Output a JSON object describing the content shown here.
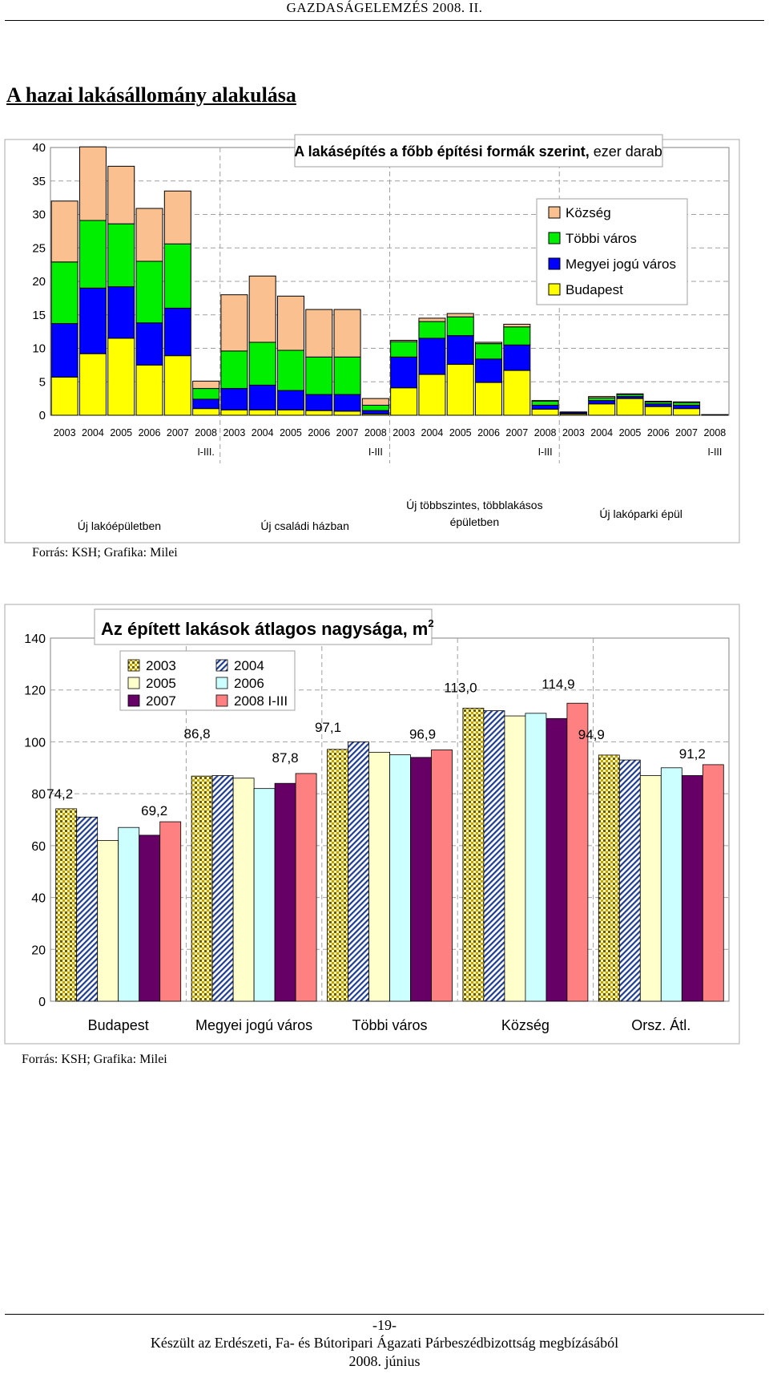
{
  "header": {
    "text": "GAZDASÁGELEMZÉS 2008. II."
  },
  "section_title": "A hazai lakásállomány alakulása",
  "chart1_source": "Forrás: KSH; Grafika: Milei",
  "chart2_source": "Forrás: KSH; Grafika: Milei",
  "footer": {
    "page": "-19-",
    "line1": "Készült az Erdészeti, Fa- és Bútoripari Ágazati Párbeszédbizottság megbízásából",
    "line2": "2008. június"
  },
  "colors": {
    "budapest": "#ffff00",
    "megyei": "#0000ff",
    "tobbi": "#00ee00",
    "kozseg": "#fac090",
    "bar2003_dots": "#c7a300",
    "bar2004_hatch": "#1f3c93",
    "bar2005": "#ffffcc",
    "bar2006": "#ccffff",
    "bar2007": "#660066",
    "bar2008": "#ff8080"
  },
  "chart_data": [
    {
      "type": "bar",
      "stacked": true,
      "title_bold": "A lakásépítés a főbb építési formák szerint,",
      "title_normal": "ezer darab",
      "ylim": [
        0,
        40
      ],
      "yticks": [
        0,
        5,
        10,
        15,
        20,
        25,
        30,
        35,
        40
      ],
      "legend": [
        "Község",
        "Többi város",
        "Megyei jogú város",
        "Budapest"
      ],
      "legend_position": "top-right",
      "groups": [
        {
          "name": "Új lakóépületben",
          "categories": [
            "2003",
            "2004",
            "2005",
            "2006",
            "2007",
            "2008"
          ],
          "period_label": "I-III.",
          "series": [
            {
              "name": "Budapest",
              "values": [
                5.7,
                9.2,
                11.5,
                7.5,
                8.9,
                1.0
              ]
            },
            {
              "name": "Megyei jogú város",
              "values": [
                8.0,
                9.8,
                7.7,
                6.3,
                7.1,
                1.4
              ]
            },
            {
              "name": "Többi város",
              "values": [
                9.2,
                10.1,
                9.4,
                9.2,
                9.6,
                1.6
              ]
            },
            {
              "name": "Község",
              "values": [
                9.1,
                11.0,
                8.6,
                7.9,
                7.9,
                1.1
              ]
            }
          ]
        },
        {
          "name": "Új családi házban",
          "categories": [
            "2003",
            "2004",
            "2005",
            "2006",
            "2007",
            "2008"
          ],
          "period_label": "I-III",
          "series": [
            {
              "name": "Budapest",
              "values": [
                0.8,
                0.8,
                0.8,
                0.7,
                0.6,
                0.2
              ]
            },
            {
              "name": "Megyei jogú város",
              "values": [
                3.2,
                3.7,
                2.9,
                2.4,
                2.5,
                0.5
              ]
            },
            {
              "name": "Többi város",
              "values": [
                5.6,
                6.4,
                6.0,
                5.6,
                5.6,
                0.8
              ]
            },
            {
              "name": "Község",
              "values": [
                8.4,
                9.9,
                8.1,
                7.1,
                7.1,
                1.0
              ]
            }
          ]
        },
        {
          "name": "Új többszintes, többlakásos épületben",
          "categories": [
            "2003",
            "2004",
            "2005",
            "2006",
            "2007",
            "2008"
          ],
          "period_label": "I-III",
          "series": [
            {
              "name": "Budapest",
              "values": [
                4.1,
                6.1,
                7.6,
                4.9,
                6.7,
                0.9
              ]
            },
            {
              "name": "Megyei jogú város",
              "values": [
                4.6,
                5.4,
                4.3,
                3.5,
                3.8,
                0.6
              ]
            },
            {
              "name": "Többi város",
              "values": [
                2.3,
                2.5,
                2.8,
                2.3,
                2.7,
                0.6
              ]
            },
            {
              "name": "Község",
              "values": [
                0.2,
                0.5,
                0.5,
                0.2,
                0.4,
                0.1
              ]
            }
          ]
        },
        {
          "name": "Új lakóparki épül",
          "categories": [
            "2003",
            "2004",
            "2005",
            "2006",
            "2007",
            "2008"
          ],
          "period_label": "I-III",
          "series": [
            {
              "name": "Budapest",
              "values": [
                0.2,
                1.7,
                2.5,
                1.3,
                1.0,
                0.0
              ]
            },
            {
              "name": "Megyei jogú város",
              "values": [
                0.2,
                0.5,
                0.3,
                0.4,
                0.5,
                0.1
              ]
            },
            {
              "name": "Többi város",
              "values": [
                0.1,
                0.4,
                0.3,
                0.3,
                0.4,
                0.0
              ]
            },
            {
              "name": "Község",
              "values": [
                0.0,
                0.2,
                0.1,
                0.1,
                0.1,
                0.0
              ]
            }
          ]
        }
      ]
    },
    {
      "type": "bar",
      "title": "Az épített lakások átlagos nagysága, m",
      "title_sup": "2",
      "ylim": [
        0,
        140
      ],
      "yticks": [
        0,
        20,
        40,
        60,
        80,
        100,
        120,
        140
      ],
      "categories": [
        "Budapest",
        "Megyei jogú város",
        "Többi város",
        "Község",
        "Orsz. Átl."
      ],
      "legend_position": "top-left",
      "series": [
        {
          "name": "2003",
          "values": [
            74.2,
            86.8,
            97.1,
            113.0,
            94.9
          ]
        },
        {
          "name": "2004",
          "values": [
            71.0,
            87.0,
            100.0,
            112.0,
            93.0
          ]
        },
        {
          "name": "2005",
          "values": [
            62.0,
            86.0,
            96.0,
            110.0,
            87.0
          ]
        },
        {
          "name": "2006",
          "values": [
            67.0,
            82.0,
            95.0,
            111.0,
            90.0
          ]
        },
        {
          "name": "2007",
          "values": [
            64.0,
            84.0,
            94.0,
            109.0,
            87.0
          ]
        },
        {
          "name": "2008 I-III",
          "values": [
            69.2,
            87.8,
            96.9,
            114.9,
            91.2
          ]
        }
      ],
      "data_labels": [
        {
          "category": "Budapest",
          "series": "2003",
          "text": "74,2"
        },
        {
          "category": "Budapest",
          "series": "2008 I-III",
          "text": "69,2"
        },
        {
          "category": "Megyei jogú város",
          "series": "2003",
          "text": "86,8"
        },
        {
          "category": "Megyei jogú város",
          "series": "2008 I-III",
          "text": "87,8"
        },
        {
          "category": "Többi város",
          "series": "2003",
          "text": "97,1"
        },
        {
          "category": "Többi város",
          "series": "2008 I-III",
          "text": "96,9"
        },
        {
          "category": "Község",
          "series": "2003",
          "text": "113,0"
        },
        {
          "category": "Község",
          "series": "2008 I-III",
          "text": "114,9"
        },
        {
          "category": "Orsz. Átl.",
          "series": "2003",
          "text": "94,9"
        },
        {
          "category": "Orsz. Átl.",
          "series": "2008 I-III",
          "text": "91,2"
        }
      ]
    }
  ]
}
